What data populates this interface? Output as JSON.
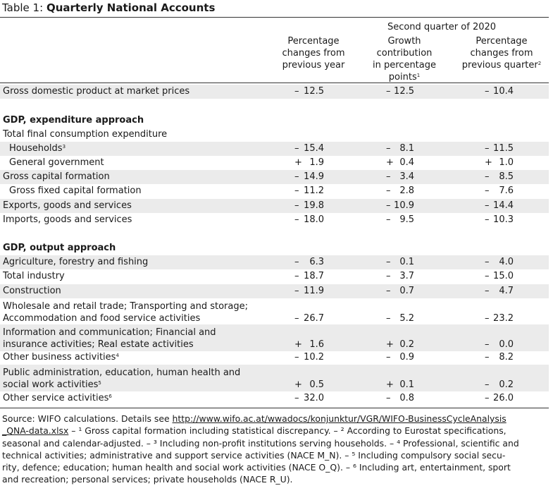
{
  "table": {
    "prefix": "Table 1: ",
    "title": "Quarterly National Accounts",
    "period": "Second quarter of 2020",
    "columns": [
      {
        "lines": [
          "Percentage",
          "changes from",
          "previous year"
        ]
      },
      {
        "lines": [
          "Growth",
          "contribution",
          "in percentage",
          "points"
        ],
        "sup": "1"
      },
      {
        "lines": [
          "Percentage",
          "changes from",
          "previous quarter"
        ],
        "sup": "2"
      }
    ],
    "rows": [
      {
        "label": "Gross domestic product at market prices",
        "values": [
          [
            "–",
            "12.5"
          ],
          [
            "–",
            "12.5"
          ],
          [
            "–",
            "10.4"
          ]
        ]
      },
      {
        "label": "GDP, expenditure approach"
      },
      {
        "label": "Total final consumption expenditure"
      },
      {
        "label": "Households",
        "sup": "3",
        "values": [
          [
            "–",
            "15.4"
          ],
          [
            "–",
            "8.1"
          ],
          [
            "–",
            "11.5"
          ]
        ]
      },
      {
        "label": "General government",
        "values": [
          [
            "+",
            "1.9"
          ],
          [
            "+",
            "0.4"
          ],
          [
            "+",
            "1.0"
          ]
        ]
      },
      {
        "label": "Gross capital formation",
        "values": [
          [
            "–",
            "14.9"
          ],
          [
            "–",
            "3.4"
          ],
          [
            "–",
            "8.5"
          ]
        ]
      },
      {
        "label": "Gross fixed capital formation",
        "values": [
          [
            "–",
            "11.2"
          ],
          [
            "–",
            "2.8"
          ],
          [
            "–",
            "7.6"
          ]
        ]
      },
      {
        "label": "Exports, goods and services",
        "values": [
          [
            "–",
            "19.8"
          ],
          [
            "–",
            "10.9"
          ],
          [
            "–",
            "14.4"
          ]
        ]
      },
      {
        "label": "Imports, goods and services",
        "values": [
          [
            "–",
            "18.0"
          ],
          [
            "–",
            "9.5"
          ],
          [
            "–",
            "10.3"
          ]
        ]
      },
      {
        "label": "GDP, output approach"
      },
      {
        "label": "Agriculture, forestry and fishing",
        "values": [
          [
            "–",
            "6.3"
          ],
          [
            "–",
            "0.1"
          ],
          [
            "–",
            "4.0"
          ]
        ]
      },
      {
        "label": "Total industry",
        "values": [
          [
            "–",
            "18.7"
          ],
          [
            "–",
            "3.7"
          ],
          [
            "–",
            "15.0"
          ]
        ]
      },
      {
        "label": "Construction",
        "values": [
          [
            "–",
            "11.9"
          ],
          [
            "–",
            "0.7"
          ],
          [
            "–",
            "4.7"
          ]
        ]
      },
      {
        "label_lines": [
          "Wholesale and retail trade; Transporting and storage;",
          "Accommodation and food service activities"
        ],
        "values": [
          [
            "–",
            "26.7"
          ],
          [
            "–",
            "5.2"
          ],
          [
            "–",
            "23.2"
          ]
        ]
      },
      {
        "label_lines": [
          "Information and communication; Financial and",
          "insurance activities; Real estate activities"
        ],
        "values": [
          [
            "+",
            "1.6"
          ],
          [
            "+",
            "0.2"
          ],
          [
            "–",
            "0.0"
          ]
        ]
      },
      {
        "label": "Other business activities",
        "sup": "4",
        "values": [
          [
            "–",
            "10.2"
          ],
          [
            "–",
            "0.9"
          ],
          [
            "–",
            "8.2"
          ]
        ]
      },
      {
        "label_lines": [
          "Public administration, education, human health and",
          "social work activities"
        ],
        "sup": "5",
        "values": [
          [
            "+",
            "0.5"
          ],
          [
            "+",
            "0.1"
          ],
          [
            "–",
            "0.2"
          ]
        ]
      },
      {
        "label": "Other service activities",
        "sup": "6",
        "values": [
          [
            "–",
            "32.0"
          ],
          [
            "–",
            "0.8"
          ],
          [
            "–",
            "26.0"
          ]
        ]
      }
    ]
  },
  "footnote": {
    "source_prefix": "Source: WIFO calculations. Details see ",
    "url_line1": "http://www.wifo.ac.at/wwadocs/konjunktur/VGR/WIFO-BusinessCycleAnalysis",
    "url_line2": "_QNA-data.xlsx",
    "n1_text": " – ¹ Gross capital formation including statistical discrepancy. – ² According to Eurostat specifications,",
    "line3": "seasonal and calendar-adjusted. – ³ Including non-profit institutions serving households. –  ⁴ Professional, scientific and",
    "line4": "technical activities; administrative and support service activities (NACE M_N). –  ⁵ Including compulsory social secu-",
    "line5": "rity, defence; education; human health and social work activities (NACE O_Q). – ⁶ Including art, entertainment, sport",
    "line6": "and recreation; personal services; private households (NACE R_U)."
  }
}
